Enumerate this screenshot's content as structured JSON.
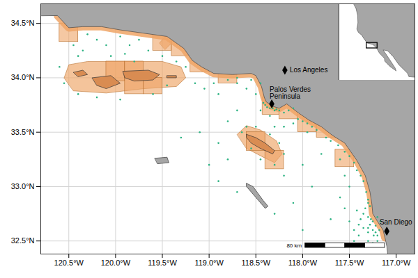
{
  "chart_data": {
    "type": "map",
    "xlim": [
      -120.8,
      -116.8
    ],
    "ylim": [
      32.38,
      34.68
    ],
    "xticks": [
      {
        "value": -120.5,
        "label": "120.5°W"
      },
      {
        "value": -120.0,
        "label": "120.0°W"
      },
      {
        "value": -119.5,
        "label": "119.5°W"
      },
      {
        "value": -119.0,
        "label": "119.0°W"
      },
      {
        "value": -118.5,
        "label": "118.5°W"
      },
      {
        "value": -118.0,
        "label": "118.0°W"
      },
      {
        "value": -117.5,
        "label": "117.5°W"
      },
      {
        "value": -117.0,
        "label": "117.0°W"
      }
    ],
    "yticks": [
      {
        "value": 32.5,
        "label": "32.5°N"
      },
      {
        "value": 33.0,
        "label": "33.0°N"
      },
      {
        "value": 33.5,
        "label": "33.5°N"
      },
      {
        "value": 34.0,
        "label": "34.0°N"
      },
      {
        "value": 34.5,
        "label": "34.5°N"
      }
    ],
    "grid": true,
    "land_color": "#a6a6a6",
    "mainland": {
      "coast": [
        [
          -120.62,
          34.57
        ],
        [
          -120.5,
          34.46
        ],
        [
          -120.35,
          34.47
        ],
        [
          -120.15,
          34.47
        ],
        [
          -119.95,
          34.44
        ],
        [
          -119.7,
          34.41
        ],
        [
          -119.45,
          34.38
        ],
        [
          -119.27,
          34.27
        ],
        [
          -119.18,
          34.16
        ],
        [
          -119.08,
          34.1
        ],
        [
          -118.95,
          34.04
        ],
        [
          -118.75,
          34.03
        ],
        [
          -118.55,
          34.04
        ],
        [
          -118.5,
          34.02
        ],
        [
          -118.44,
          33.92
        ],
        [
          -118.41,
          33.82
        ],
        [
          -118.39,
          33.78
        ],
        [
          -118.33,
          33.74
        ],
        [
          -118.25,
          33.72
        ],
        [
          -118.17,
          33.76
        ],
        [
          -118.05,
          33.68
        ],
        [
          -117.93,
          33.61
        ],
        [
          -117.8,
          33.55
        ],
        [
          -117.68,
          33.47
        ],
        [
          -117.55,
          33.4
        ],
        [
          -117.42,
          33.24
        ],
        [
          -117.33,
          33.1
        ],
        [
          -117.28,
          32.95
        ],
        [
          -117.26,
          32.84
        ],
        [
          -117.25,
          32.75
        ],
        [
          -117.2,
          32.68
        ],
        [
          -117.14,
          32.6
        ],
        [
          -117.12,
          32.53
        ]
      ],
      "inland": [
        [
          -117.1,
          32.45
        ],
        [
          -117.08,
          32.3
        ],
        [
          -116.6,
          32.3
        ],
        [
          -116.6,
          34.8
        ],
        [
          -121.0,
          34.8
        ],
        [
          -121.0,
          34.57
        ]
      ]
    },
    "islands": [
      {
        "color": "#d98c52",
        "coords": [
          [
            -120.45,
            34.05
          ],
          [
            -120.35,
            34.07
          ],
          [
            -120.3,
            34.03
          ],
          [
            -120.4,
            34.01
          ]
        ]
      },
      {
        "color": "#d98c52",
        "coords": [
          [
            -120.25,
            34.0
          ],
          [
            -120.05,
            34.02
          ],
          [
            -119.95,
            33.95
          ],
          [
            -120.1,
            33.9
          ],
          [
            -120.2,
            33.93
          ]
        ]
      },
      {
        "color": "#d98c52",
        "coords": [
          [
            -119.92,
            34.06
          ],
          [
            -119.65,
            34.07
          ],
          [
            -119.53,
            34.03
          ],
          [
            -119.6,
            33.98
          ],
          [
            -119.8,
            33.97
          ],
          [
            -119.9,
            34.0
          ]
        ]
      },
      {
        "color": "#d98c52",
        "coords": [
          [
            -119.45,
            34.02
          ],
          [
            -119.35,
            34.02
          ],
          [
            -119.35,
            34.0
          ],
          [
            -119.45,
            34.0
          ]
        ]
      },
      {
        "color": "#d98c52",
        "coords": [
          [
            -118.6,
            33.48
          ],
          [
            -118.5,
            33.45
          ],
          [
            -118.4,
            33.4
          ],
          [
            -118.3,
            33.33
          ],
          [
            -118.32,
            33.3
          ],
          [
            -118.45,
            33.35
          ],
          [
            -118.55,
            33.4
          ],
          [
            -118.6,
            33.45
          ]
        ]
      },
      {
        "color": "#a6a6a6",
        "coords": [
          [
            -119.58,
            33.26
          ],
          [
            -119.45,
            33.27
          ],
          [
            -119.43,
            33.22
          ],
          [
            -119.55,
            33.21
          ]
        ]
      },
      {
        "color": "#a6a6a6",
        "coords": [
          [
            -118.6,
            33.03
          ],
          [
            -118.53,
            33.0
          ],
          [
            -118.42,
            32.87
          ],
          [
            -118.37,
            32.82
          ],
          [
            -118.4,
            32.8
          ],
          [
            -118.5,
            32.9
          ],
          [
            -118.6,
            33.0
          ]
        ]
      }
    ],
    "regions": {
      "color": "#eea466",
      "polygons": [
        [
          [
            -120.55,
            34.0
          ],
          [
            -120.5,
            34.12
          ],
          [
            -120.3,
            34.15
          ],
          [
            -119.9,
            34.15
          ],
          [
            -119.5,
            34.15
          ],
          [
            -119.3,
            34.1
          ],
          [
            -119.25,
            34.0
          ],
          [
            -119.35,
            33.92
          ],
          [
            -119.7,
            33.9
          ],
          [
            -120.1,
            33.86
          ],
          [
            -120.45,
            33.88
          ]
        ],
        [
          [
            -118.7,
            33.48
          ],
          [
            -118.6,
            33.56
          ],
          [
            -118.45,
            33.52
          ],
          [
            -118.28,
            33.42
          ],
          [
            -118.22,
            33.3
          ],
          [
            -118.3,
            33.22
          ],
          [
            -118.42,
            33.27
          ],
          [
            -118.6,
            33.35
          ]
        ],
        [
          [
            -119.53,
            34.32
          ],
          [
            -119.47,
            34.38
          ],
          [
            -119.4,
            34.32
          ],
          [
            -119.47,
            34.26
          ]
        ]
      ]
    },
    "cells": {
      "color": "#eea466",
      "boxes": [
        [
          -120.6,
          -120.4,
          34.33,
          34.5
        ],
        [
          -119.6,
          -119.4,
          34.25,
          34.42
        ],
        [
          -119.4,
          -119.2,
          34.2,
          34.37
        ],
        [
          -119.2,
          -119.0,
          34.05,
          34.22
        ],
        [
          -118.9,
          -118.7,
          33.95,
          34.12
        ],
        [
          -120.1,
          -119.9,
          33.97,
          34.15
        ],
        [
          -119.9,
          -119.7,
          33.85,
          34.15
        ],
        [
          -119.7,
          -119.5,
          33.85,
          34.0
        ],
        [
          -118.43,
          -118.25,
          33.66,
          33.82
        ],
        [
          -118.25,
          -118.05,
          33.62,
          33.78
        ],
        [
          -118.05,
          -117.85,
          33.5,
          33.66
        ],
        [
          -118.6,
          -118.4,
          33.33,
          33.5
        ],
        [
          -118.4,
          -118.2,
          33.16,
          33.33
        ],
        [
          -117.85,
          -117.65,
          33.45,
          33.6
        ],
        [
          -117.65,
          -117.45,
          33.18,
          33.34
        ]
      ]
    },
    "points": {
      "color": "#2db383",
      "coords": [
        [
          -120.45,
          34.3
        ],
        [
          -120.35,
          34.25
        ],
        [
          -120.2,
          34.35
        ],
        [
          -120.1,
          34.3
        ],
        [
          -119.95,
          34.38
        ],
        [
          -119.85,
          34.3
        ],
        [
          -119.75,
          34.35
        ],
        [
          -119.65,
          34.25
        ],
        [
          -120.4,
          34.2
        ],
        [
          -120.3,
          34.4
        ],
        [
          -119.9,
          34.22
        ],
        [
          -120.05,
          34.2
        ],
        [
          -119.5,
          34.2
        ],
        [
          -119.35,
          34.15
        ],
        [
          -119.25,
          34.1
        ],
        [
          -120.55,
          33.95
        ],
        [
          -120.4,
          33.85
        ],
        [
          -120.2,
          33.82
        ],
        [
          -119.95,
          33.8
        ],
        [
          -119.6,
          33.85
        ],
        [
          -119.45,
          33.93
        ],
        [
          -120.6,
          34.1
        ],
        [
          -119.8,
          34.15
        ],
        [
          -119.15,
          33.95
        ],
        [
          -118.8,
          33.98
        ],
        [
          -118.7,
          33.95
        ],
        [
          -118.6,
          33.9
        ],
        [
          -118.55,
          33.98
        ],
        [
          -118.5,
          33.85
        ],
        [
          -118.45,
          33.95
        ],
        [
          -118.7,
          34.0
        ],
        [
          -118.95,
          33.95
        ],
        [
          -119.05,
          33.9
        ],
        [
          -118.9,
          33.85
        ],
        [
          -118.42,
          33.77
        ],
        [
          -118.4,
          33.75
        ],
        [
          -118.38,
          33.73
        ],
        [
          -118.35,
          33.72
        ],
        [
          -118.32,
          33.72
        ],
        [
          -118.3,
          33.7
        ],
        [
          -118.28,
          33.71
        ],
        [
          -118.25,
          33.7
        ],
        [
          -118.45,
          33.7
        ],
        [
          -118.35,
          33.65
        ],
        [
          -118.2,
          33.68
        ],
        [
          -118.15,
          33.7
        ],
        [
          -118.1,
          33.72
        ],
        [
          -118.05,
          33.62
        ],
        [
          -118.0,
          33.6
        ],
        [
          -117.95,
          33.58
        ],
        [
          -117.9,
          33.55
        ],
        [
          -117.85,
          33.52
        ],
        [
          -118.1,
          33.58
        ],
        [
          -117.95,
          33.5
        ],
        [
          -118.2,
          33.55
        ],
        [
          -118.3,
          33.55
        ],
        [
          -118.7,
          33.7
        ],
        [
          -118.8,
          33.6
        ],
        [
          -118.6,
          33.55
        ],
        [
          -118.9,
          33.4
        ],
        [
          -119.1,
          33.5
        ],
        [
          -119.3,
          33.45
        ],
        [
          -119.0,
          33.2
        ],
        [
          -118.8,
          33.25
        ],
        [
          -118.9,
          33.05
        ],
        [
          -118.7,
          32.95
        ],
        [
          -118.2,
          33.1
        ],
        [
          -118.0,
          33.2
        ],
        [
          -117.9,
          33.0
        ],
        [
          -118.1,
          32.85
        ],
        [
          -118.3,
          32.75
        ],
        [
          -118.0,
          32.6
        ],
        [
          -117.7,
          32.7
        ],
        [
          -117.8,
          33.3
        ],
        [
          -118.65,
          33.5
        ],
        [
          -118.5,
          33.55
        ],
        [
          -118.35,
          33.48
        ],
        [
          -118.25,
          33.4
        ],
        [
          -118.2,
          33.3
        ],
        [
          -118.55,
          33.35
        ],
        [
          -118.45,
          33.25
        ],
        [
          -118.3,
          33.2
        ],
        [
          -117.75,
          33.45
        ],
        [
          -117.7,
          33.42
        ],
        [
          -117.62,
          33.38
        ],
        [
          -117.55,
          33.32
        ],
        [
          -117.5,
          33.28
        ],
        [
          -117.45,
          33.22
        ],
        [
          -117.42,
          33.15
        ],
        [
          -117.38,
          33.1
        ],
        [
          -117.35,
          33.05
        ],
        [
          -117.6,
          33.25
        ],
        [
          -117.55,
          33.1
        ],
        [
          -117.5,
          33.0
        ],
        [
          -117.32,
          32.95
        ],
        [
          -117.3,
          32.88
        ],
        [
          -117.3,
          32.85
        ],
        [
          -117.28,
          32.82
        ],
        [
          -117.33,
          32.8
        ],
        [
          -117.35,
          32.75
        ],
        [
          -117.3,
          32.72
        ],
        [
          -117.27,
          32.7
        ],
        [
          -117.25,
          32.68
        ],
        [
          -117.28,
          32.65
        ],
        [
          -117.3,
          32.62
        ],
        [
          -117.25,
          32.6
        ],
        [
          -117.22,
          32.58
        ],
        [
          -117.2,
          32.55
        ],
        [
          -117.24,
          32.55
        ],
        [
          -117.3,
          32.58
        ],
        [
          -117.35,
          32.62
        ],
        [
          -117.4,
          32.65
        ],
        [
          -117.22,
          32.64
        ],
        [
          -117.18,
          32.6
        ],
        [
          -117.17,
          32.68
        ],
        [
          -117.2,
          32.72
        ],
        [
          -117.38,
          32.7
        ],
        [
          -117.42,
          32.78
        ],
        [
          -117.45,
          32.6
        ],
        [
          -117.4,
          32.55
        ],
        [
          -117.3,
          32.5
        ],
        [
          -117.25,
          32.48
        ],
        [
          -117.2,
          32.5
        ],
        [
          -117.35,
          32.45
        ],
        [
          -117.45,
          32.5
        ],
        [
          -117.5,
          32.68
        ],
        [
          -117.55,
          32.8
        ],
        [
          -117.6,
          32.9
        ]
      ]
    },
    "places": [
      {
        "label": "Los Angeles",
        "coords": [
          -118.19,
          34.07
        ],
        "marker": "diamond"
      },
      {
        "label": "Palos Verdes\nPeninsula",
        "coords": [
          -118.33,
          33.76
        ],
        "marker": "diamond"
      },
      {
        "label": "San Diego",
        "coords": [
          -117.1,
          32.59
        ],
        "marker": "diamond"
      }
    ],
    "scale_bar": {
      "km": 80,
      "label": "80 km"
    },
    "inset": {
      "xlim": [
        -131,
        -103
      ],
      "ylim": [
        19,
        51
      ],
      "tick_labels": false,
      "land": [
        [
          -124.7,
          49
        ],
        [
          -124.1,
          46.2
        ],
        [
          -124.0,
          43
        ],
        [
          -124.4,
          40.4
        ],
        [
          -123.8,
          39.0
        ],
        [
          -122.5,
          37.8
        ],
        [
          -121.9,
          36.6
        ],
        [
          -120.6,
          34.6
        ],
        [
          -118.5,
          34.0
        ],
        [
          -117.1,
          32.5
        ],
        [
          -116.1,
          30.4
        ],
        [
          -114.2,
          28.2
        ],
        [
          -114.1,
          27.0
        ],
        [
          -112.2,
          24.8
        ],
        [
          -109.9,
          22.9
        ],
        [
          -110.3,
          24.2
        ],
        [
          -112.8,
          28.5
        ],
        [
          -114.7,
          31.7
        ],
        [
          -113.0,
          31.3
        ],
        [
          -111.0,
          28.9
        ],
        [
          -108.9,
          25.5
        ],
        [
          -105.7,
          21.9
        ],
        [
          -105.2,
          20.5
        ],
        [
          -100,
          20
        ],
        [
          -100,
          52
        ],
        [
          -126,
          52
        ]
      ]
    }
  }
}
